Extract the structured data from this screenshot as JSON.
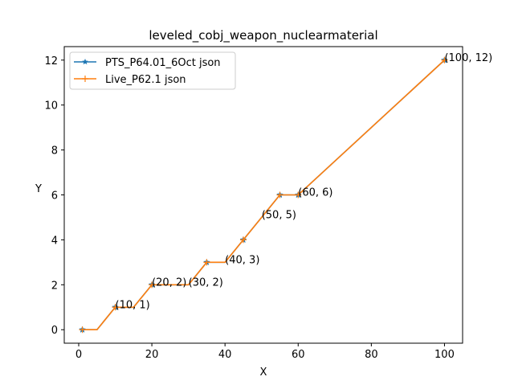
{
  "chart_data": {
    "type": "line",
    "title": "leveled_cobj_weapon_nuclearmaterial",
    "xlabel": "X",
    "ylabel": "Y",
    "xlim": [
      -3.95,
      104.95
    ],
    "ylim": [
      -0.6,
      12.6
    ],
    "x_ticks": [
      0,
      20,
      40,
      60,
      80,
      100
    ],
    "y_ticks": [
      0,
      2,
      4,
      6,
      8,
      10,
      12
    ],
    "grid": false,
    "legend_position": "upper left",
    "series": [
      {
        "name": "PTS_P64.01_6Oct json",
        "color": "#1f77b4",
        "marker": "star",
        "x": [
          1,
          5,
          10,
          15,
          20,
          25,
          30,
          35,
          40,
          45,
          50,
          55,
          60,
          100
        ],
        "y": [
          0,
          0,
          1,
          1,
          2,
          2,
          2,
          3,
          3,
          4,
          5,
          6,
          6,
          12
        ],
        "marker_x": [
          1,
          10,
          20,
          35,
          45,
          55,
          60,
          100
        ],
        "marker_y": [
          0,
          1,
          2,
          3,
          4,
          6,
          6,
          12
        ]
      },
      {
        "name": "Live_P62.1 json",
        "color": "#ff7f0e",
        "marker": "plus",
        "x": [
          1,
          5,
          10,
          15,
          20,
          25,
          30,
          35,
          40,
          45,
          50,
          55,
          60,
          100
        ],
        "y": [
          0,
          0,
          1,
          1,
          2,
          2,
          2,
          3,
          3,
          4,
          5,
          6,
          6,
          12
        ],
        "marker_x": [
          1,
          10,
          20,
          35,
          45,
          55,
          60,
          100
        ],
        "marker_y": [
          0,
          1,
          2,
          3,
          4,
          6,
          6,
          12
        ]
      }
    ],
    "annotations": [
      {
        "text": "(10, 1)",
        "x": 10,
        "y": 1
      },
      {
        "text": "(20, 2)",
        "x": 20,
        "y": 2
      },
      {
        "text": "(30, 2)",
        "x": 30,
        "y": 2
      },
      {
        "text": "(40, 3)",
        "x": 40,
        "y": 3
      },
      {
        "text": "(50, 5)",
        "x": 50,
        "y": 5
      },
      {
        "text": "(60, 6)",
        "x": 60,
        "y": 6
      },
      {
        "text": "(100, 12)",
        "x": 100,
        "y": 12
      }
    ]
  }
}
